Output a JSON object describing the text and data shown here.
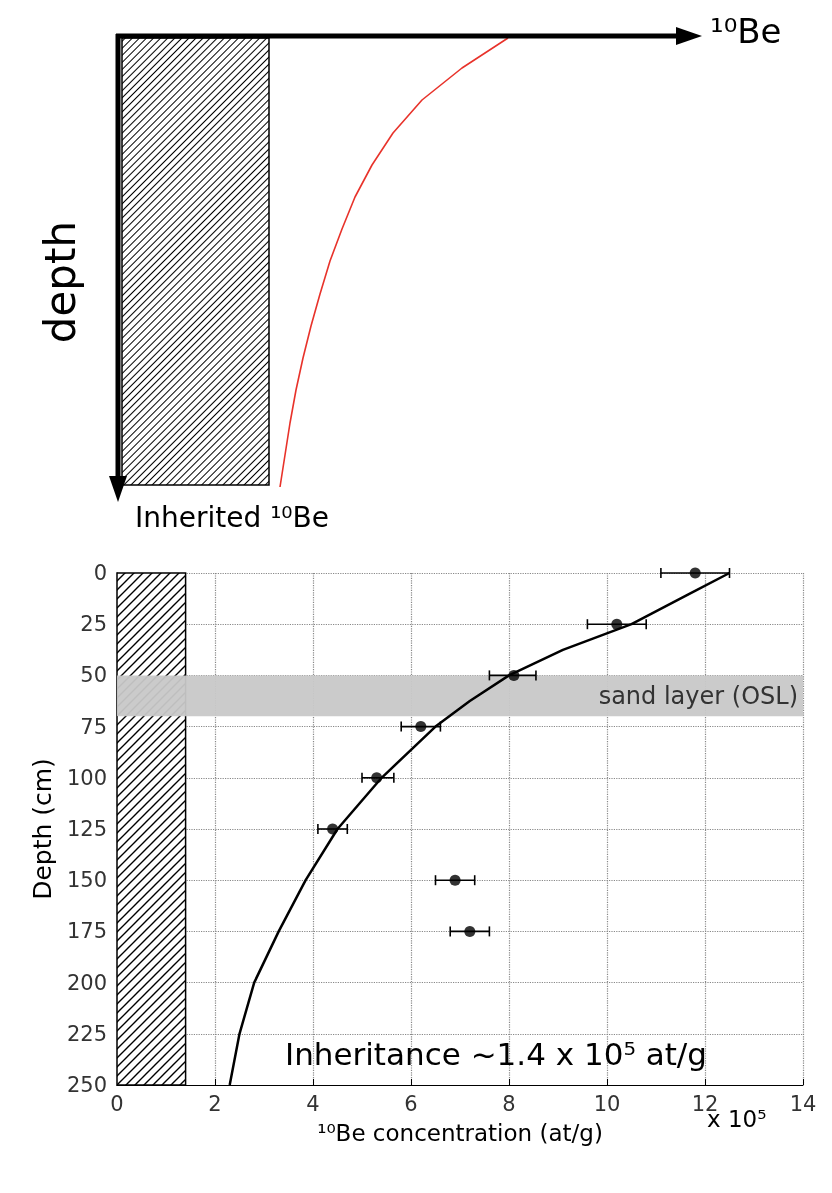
{
  "chart_data": [
    {
      "type": "other",
      "xlabel": "¹⁰Be",
      "ylabel": "depth",
      "annotations": [
        "Inherited ¹⁰Be"
      ]
    },
    {
      "type": "scatter",
      "xlabel": "¹⁰Be concentration (at/g)",
      "ylabel": "Depth (cm)",
      "xlim": [
        0,
        14
      ],
      "xticks": [
        0,
        2,
        4,
        6,
        8,
        10,
        12,
        14
      ],
      "ylim": [
        250,
        0
      ],
      "yticks": [
        0,
        25,
        50,
        75,
        100,
        125,
        150,
        175,
        200,
        225,
        250
      ],
      "grid": true,
      "series": [
        {
          "type": "scatter",
          "color": "#000000",
          "marker": "circle",
          "x": [
            11.8,
            10.2,
            8.1,
            6.2,
            5.3,
            4.4,
            6.9,
            7.2
          ],
          "values": [
            0,
            25,
            50,
            75,
            100,
            125,
            150,
            175
          ],
          "xerrors": [
            [
              11.1,
              12.5
            ],
            [
              9.6,
              10.8
            ],
            [
              7.6,
              8.55
            ],
            [
              5.8,
              6.6
            ],
            [
              5.0,
              5.65
            ],
            [
              4.1,
              4.7
            ],
            [
              6.5,
              7.3
            ],
            [
              6.8,
              7.6
            ]
          ]
        },
        {
          "type": "line",
          "color": "#000000",
          "marker": "none",
          "x": [
            12.5,
            11.7,
            10.5,
            9.1,
            8.0,
            7.2,
            6.5,
            5.4,
            4.5,
            3.85,
            3.3,
            2.8,
            2.5,
            2.3
          ],
          "values": [
            0,
            10,
            25,
            37.5,
            50,
            62.5,
            75,
            100,
            125,
            150,
            175,
            200,
            225,
            250
          ]
        }
      ],
      "bands": [
        {
          "axis": "x",
          "from": 0,
          "to": 1.4
        },
        {
          "axis": "y",
          "from": 50,
          "to": 70,
          "label": "sand layer (OSL)",
          "color": "#c8c8c8"
        }
      ],
      "annotations": [
        "Inheritance ~1.4 x 10⁵ at/g",
        "x 10⁵"
      ]
    }
  ]
}
